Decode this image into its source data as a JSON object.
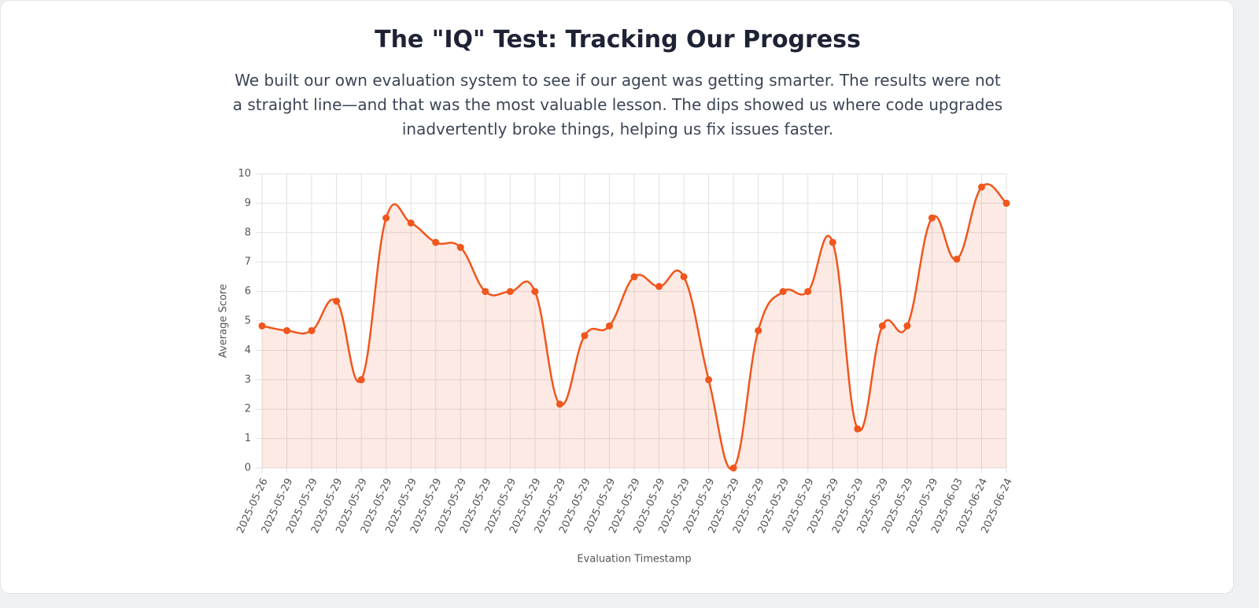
{
  "title": "The \"IQ\" Test: Tracking Our Progress",
  "subtitle": "We built our own evaluation system to see if our agent was getting smarter. The results were not a straight line—and that was the most valuable lesson. The dips showed us where code upgrades inadvertently broke things, helping us fix issues faster.",
  "chart_data": {
    "type": "line",
    "x_label": "Evaluation Timestamp",
    "y_label": "Average Score",
    "categories": [
      "2025-05-26",
      "2025-05-29",
      "2025-05-29",
      "2025-05-29",
      "2025-05-29",
      "2025-05-29",
      "2025-05-29",
      "2025-05-29",
      "2025-05-29",
      "2025-05-29",
      "2025-05-29",
      "2025-05-29",
      "2025-05-29",
      "2025-05-29",
      "2025-05-29",
      "2025-05-29",
      "2025-05-29",
      "2025-05-29",
      "2025-05-29",
      "2025-05-29",
      "2025-05-29",
      "2025-05-29",
      "2025-05-29",
      "2025-05-29",
      "2025-05-29",
      "2025-05-29",
      "2025-05-29",
      "2025-05-29",
      "2025-06-03",
      "2025-06-24",
      "2025-06-24"
    ],
    "series": [
      {
        "name": "Average Score",
        "color": "#f0561d",
        "values": [
          4.83,
          4.67,
          4.67,
          5.67,
          3,
          8.5,
          8.33,
          7.67,
          7.5,
          6,
          6,
          6,
          2.17,
          4.5,
          4.83,
          6.5,
          6.17,
          6.5,
          3,
          0,
          4.67,
          6,
          6,
          7.67,
          1.33,
          4.83,
          4.83,
          8.5,
          7.1,
          9.55,
          9
        ]
      }
    ],
    "ylim": [
      0,
      10
    ],
    "yticks": [
      0,
      1,
      2,
      3,
      4,
      5,
      6,
      7,
      8,
      9,
      10
    ],
    "grid": true
  }
}
